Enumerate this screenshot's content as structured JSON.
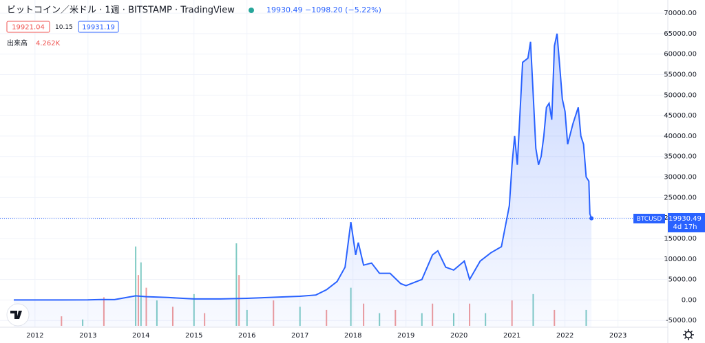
{
  "chart_data": {
    "type": "line",
    "title": "ビットコイン／米ドル · 1週 · BITSTAMP · TradingView",
    "quote": "19930.49 −1098.20 (−5.22%)",
    "ohlc": [
      19921.04,
      10.15,
      19931.19
    ],
    "volume_label": "出来高",
    "volume_now": "4.262K",
    "price_tag": {
      "symbol": "BTCUSD",
      "price": "19930.49",
      "countdown": "4d 17h"
    },
    "xlim": [
      2011.34,
      2023.94
    ],
    "xticks": [
      2012,
      2013,
      2014,
      2015,
      2016,
      2017,
      2018,
      2019,
      2020,
      2021,
      2022,
      2023
    ],
    "ylim": [
      -10500,
      73200
    ],
    "yticks": [
      {
        "value": -5000,
        "label": "-5000.00"
      },
      {
        "value": 0,
        "label": "0.00"
      },
      {
        "value": 5000,
        "label": "5000.00"
      },
      {
        "value": 10000,
        "label": "10000.00"
      },
      {
        "value": 15000,
        "label": "15000.00"
      },
      {
        "value": 20000,
        "label": "20000.00"
      },
      {
        "value": 25000,
        "label": "25000.00"
      },
      {
        "value": 30000,
        "label": "30000.00"
      },
      {
        "value": 35000,
        "label": "35000.00"
      },
      {
        "value": 40000,
        "label": "40000.00"
      },
      {
        "value": 45000,
        "label": "45000.00"
      },
      {
        "value": 50000,
        "label": "50000.00"
      },
      {
        "value": 55000,
        "label": "55000.00"
      },
      {
        "value": 60000,
        "label": "60000.00"
      },
      {
        "value": 65000,
        "label": "65000.00"
      },
      {
        "value": 70000,
        "label": "70000.00"
      }
    ],
    "grid": true,
    "series": [
      {
        "name": "BTCUSD",
        "color": "#2962ff",
        "x": [
          2011.6,
          2012.0,
          2012.5,
          2013.0,
          2013.25,
          2013.5,
          2013.9,
          2014.1,
          2014.5,
          2015.0,
          2015.5,
          2016.0,
          2016.5,
          2017.0,
          2017.3,
          2017.5,
          2017.7,
          2017.85,
          2017.96,
          2018.05,
          2018.1,
          2018.2,
          2018.35,
          2018.5,
          2018.7,
          2018.9,
          2019.0,
          2019.3,
          2019.5,
          2019.6,
          2019.75,
          2019.9,
          2020.1,
          2020.2,
          2020.4,
          2020.6,
          2020.8,
          2020.95,
          2021.0,
          2021.05,
          2021.1,
          2021.2,
          2021.3,
          2021.35,
          2021.4,
          2021.45,
          2021.5,
          2021.55,
          2021.6,
          2021.65,
          2021.7,
          2021.75,
          2021.8,
          2021.85,
          2021.9,
          2021.95,
          2022.0,
          2022.05,
          2022.15,
          2022.25,
          2022.3,
          2022.35,
          2022.4,
          2022.45,
          2022.47,
          2022.5
        ],
        "values": [
          5,
          5,
          7,
          13,
          100,
          90,
          1000,
          800,
          600,
          250,
          250,
          400,
          650,
          900,
          1200,
          2500,
          4500,
          8000,
          19000,
          11000,
          14000,
          8500,
          9000,
          6500,
          6500,
          4000,
          3500,
          5000,
          11000,
          12000,
          8000,
          7300,
          9500,
          5000,
          9500,
          11500,
          13000,
          23000,
          33000,
          40000,
          33000,
          58000,
          59000,
          63000,
          50000,
          37000,
          33000,
          35000,
          40000,
          47000,
          48000,
          44000,
          62000,
          65000,
          57000,
          49000,
          46000,
          38000,
          43000,
          47000,
          40000,
          38000,
          30000,
          29000,
          21000,
          19930.49
        ]
      }
    ],
    "volume": {
      "colors": [
        "#ef9a9a",
        "#80cbc4"
      ],
      "x": [
        2012.5,
        2012.9,
        2013.3,
        2013.9,
        2013.95,
        2014.0,
        2014.1,
        2014.3,
        2014.6,
        2015.0,
        2015.2,
        2015.8,
        2015.85,
        2016.0,
        2016.5,
        2017.0,
        2017.5,
        2017.96,
        2018.2,
        2018.5,
        2018.8,
        2019.3,
        2019.5,
        2019.9,
        2020.2,
        2020.5,
        2021.0,
        2021.4,
        2021.8,
        2022.4
      ],
      "values": [
        1500,
        1000,
        4500,
        12500,
        8000,
        10000,
        6000,
        4000,
        3000,
        5000,
        2000,
        13000,
        8000,
        2500,
        4000,
        3000,
        2500,
        6000,
        3500,
        2000,
        2500,
        2000,
        3500,
        2000,
        3500,
        2000,
        4000,
        5000,
        2500,
        2500
      ]
    }
  }
}
